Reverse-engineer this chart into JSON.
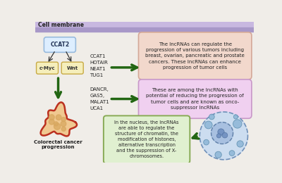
{
  "bg_color": "#f0ede8",
  "membrane_color1": "#c8b8e0",
  "membrane_color2": "#a898c8",
  "membrane_label": "Cell membrane",
  "ccat2_label": "CCAT2",
  "cmyc_label": "c-Myc",
  "wnt_label": "Wnt",
  "box1_labels": "CCAT1\nHOTAIR\nNEAT1\nTUG1",
  "box1_text": "The lncRNAs can regulate the\nprogression of various tumors including\nbreast, ovarian, pancreatic and prostate\ncancers. These lncRNAs can enhance\nprogression of tumor cells",
  "box1_bg": "#f2d8cc",
  "box1_edge": "#d4a898",
  "box2_labels": "DANCR,\nGAS5,\nMALAT1\nUCA1",
  "box2_text": "These are among the lncRNAs with\npotential of reducing the progression of\ntumor cells and are known as onco-\nsuppressor lncRNAs",
  "box2_bg": "#f0d0f0",
  "box2_edge": "#c898c8",
  "box3_text": "In the nucleus, the lncRNAs\nare able to regulate the\nstructure of chromatin, the\nmodification of histones,\nalternative transcription\nand the suppression of X-\nchromosomes.",
  "box3_bg": "#e0f0d0",
  "box3_edge": "#88aa55",
  "colorectal_label": "Colorectal cancer\nprogression",
  "arrow_color": "#226612",
  "black_arrow": "#333333",
  "ccat2_bg": "#ddeeff",
  "ccat2_edge": "#99bbdd",
  "cmyc_wnt_bg": "#f5eebb",
  "cmyc_wnt_edge": "#c8aa44"
}
